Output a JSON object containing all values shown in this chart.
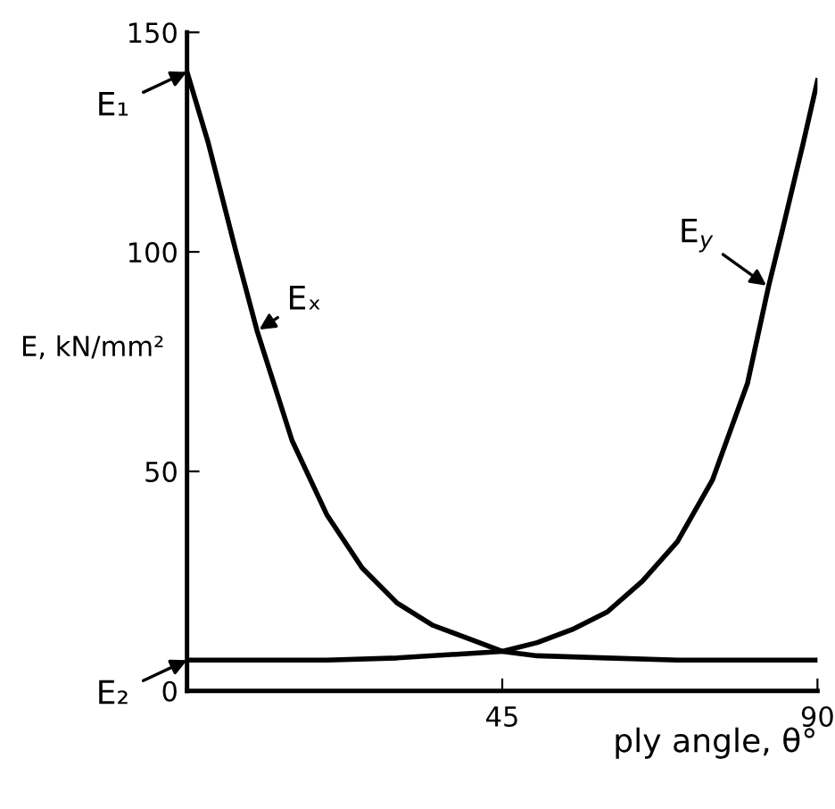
{
  "chart_data": {
    "type": "line",
    "xlabel": "ply angle, θ°",
    "ylabel": "E, kN/mm²",
    "xlim": [
      0,
      90
    ],
    "ylim": [
      0,
      150
    ],
    "xticks": [
      45,
      90
    ],
    "yticks": [
      0,
      50,
      100,
      150
    ],
    "grid": false,
    "legend": false,
    "marker": "none",
    "line_style": "solid",
    "series": [
      {
        "name": "Eₓ",
        "color": "#000000",
        "x": [
          0,
          3,
          7,
          10,
          15,
          20,
          25,
          30,
          35,
          40,
          45,
          50,
          60,
          70,
          90
        ],
        "values": [
          141,
          125,
          100,
          82,
          57,
          40,
          28,
          20,
          15,
          12,
          9,
          8,
          7.5,
          7,
          7
        ]
      },
      {
        "name": "E$_{y}$",
        "color": "#000000",
        "x": [
          0,
          20,
          30,
          40,
          45,
          50,
          55,
          60,
          65,
          70,
          75,
          80,
          83,
          85,
          88,
          90
        ],
        "values": [
          7,
          7,
          7.5,
          8.5,
          9,
          11,
          14,
          18,
          25,
          34,
          48,
          70,
          92,
          105,
          125,
          139
        ]
      }
    ],
    "annotations": [
      {
        "text": "E₁",
        "x": 0,
        "y": 141
      },
      {
        "text": "E₂",
        "x": 0,
        "y": 7
      }
    ]
  }
}
